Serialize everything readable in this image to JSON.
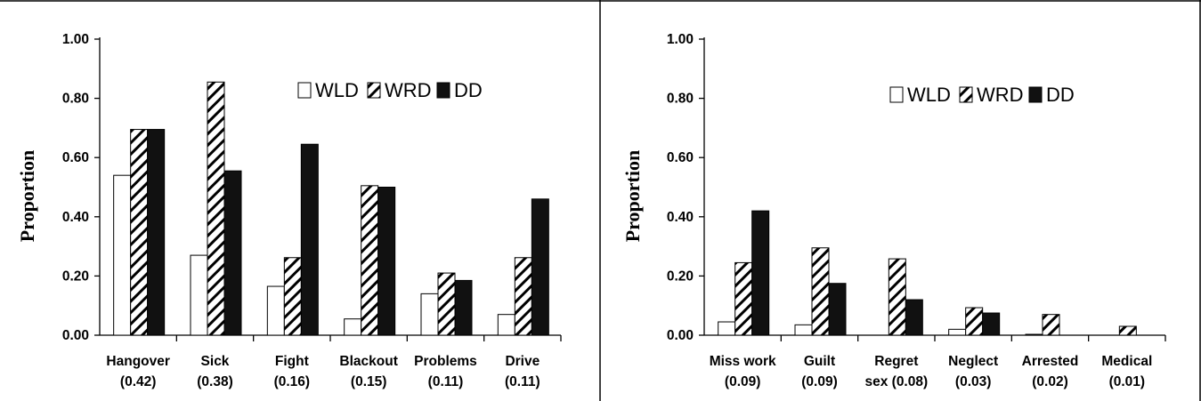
{
  "chart_data": [
    {
      "type": "bar",
      "ylabel": "Proportion",
      "ylim": [
        0,
        1
      ],
      "yticks": [
        "0.00",
        "0.20",
        "0.40",
        "0.60",
        "0.80",
        "1.00"
      ],
      "legend_position": "top-right",
      "categories": [
        [
          "Hangover",
          "(0.42)"
        ],
        [
          "Sick",
          "(0.38)"
        ],
        [
          "Fight",
          "(0.16)"
        ],
        [
          "Blackout",
          "(0.15)"
        ],
        [
          "Problems",
          "(0.11)"
        ],
        [
          "Drive",
          "(0.11)"
        ]
      ],
      "series": [
        {
          "name": "WLD",
          "fill": "white",
          "values": [
            0.54,
            0.27,
            0.165,
            0.055,
            0.14,
            0.07
          ]
        },
        {
          "name": "WRD",
          "fill": "hatch",
          "values": [
            0.695,
            0.855,
            0.262,
            0.505,
            0.21,
            0.262
          ]
        },
        {
          "name": "DD",
          "fill": "black",
          "values": [
            0.695,
            0.555,
            0.645,
            0.5,
            0.185,
            0.46
          ]
        }
      ]
    },
    {
      "type": "bar",
      "ylabel": "Proportion",
      "ylim": [
        0,
        1
      ],
      "yticks": [
        "0.00",
        "0.20",
        "0.40",
        "0.60",
        "0.80",
        "1.00"
      ],
      "legend_position": "top-right",
      "categories": [
        [
          "Miss work",
          "(0.09)"
        ],
        [
          "Guilt",
          "(0.09)"
        ],
        [
          "Regret",
          "sex (0.08)"
        ],
        [
          "Neglect",
          "(0.03)"
        ],
        [
          "Arrested",
          "(0.02)"
        ],
        [
          "Medical",
          "(0.01)"
        ]
      ],
      "series": [
        {
          "name": "WLD",
          "fill": "white",
          "values": [
            0.045,
            0.035,
            0.0,
            0.02,
            0.003,
            0.0
          ]
        },
        {
          "name": "WRD",
          "fill": "hatch",
          "values": [
            0.245,
            0.295,
            0.258,
            0.093,
            0.07,
            0.03
          ]
        },
        {
          "name": "DD",
          "fill": "black",
          "values": [
            0.42,
            0.175,
            0.12,
            0.075,
            0.0,
            0.0
          ]
        }
      ]
    }
  ],
  "colors": {
    "bar_stroke": "#000000",
    "dark_fill": "#111111",
    "background": "#ffffff"
  }
}
